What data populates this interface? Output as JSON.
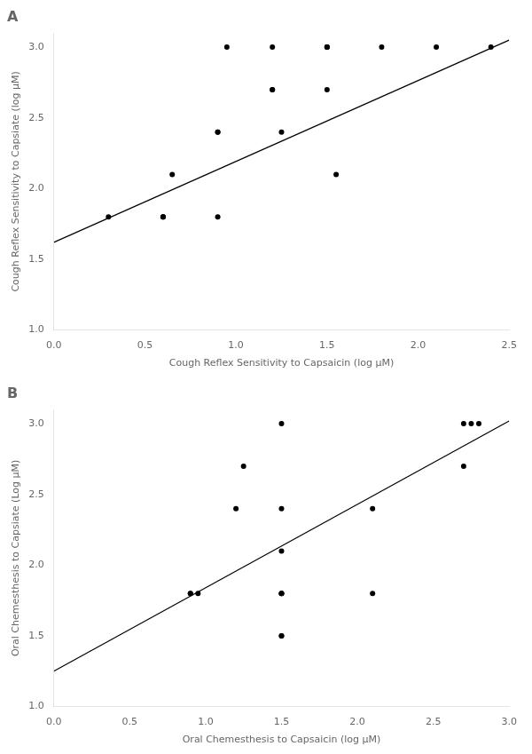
{
  "chart_data": [
    {
      "type": "scatter",
      "title": "A",
      "xlabel": "Cough Reflex Sensitivity to Capsaicin (log μM)",
      "ylabel": "Cough Reflex Sensitivity to Capsiate (log μM)",
      "xlim": [
        0.0,
        2.5
      ],
      "ylim": [
        1.0,
        3.1
      ],
      "xticks": [
        {
          "value": 0.0,
          "label": "0.0"
        },
        {
          "value": 0.5,
          "label": "0.5"
        },
        {
          "value": 1.0,
          "label": "1.0"
        },
        {
          "value": 1.5,
          "label": "1.5"
        },
        {
          "value": 2.0,
          "label": "2.0"
        },
        {
          "value": 2.5,
          "label": "2.5"
        }
      ],
      "yticks": [
        {
          "value": 1.0,
          "label": "1.0"
        },
        {
          "value": 1.5,
          "label": "1.5"
        },
        {
          "value": 2.0,
          "label": "2.0"
        },
        {
          "value": 2.5,
          "label": "2.5"
        },
        {
          "value": 3.0,
          "label": "3.0"
        }
      ],
      "grid": false,
      "series": [
        {
          "type": "scatter",
          "color": "#000000",
          "x": [
            0.3,
            0.6,
            0.6,
            0.6,
            0.65,
            0.9,
            0.9,
            0.9,
            0.95,
            1.2,
            1.2,
            1.2,
            1.25,
            1.5,
            1.5,
            1.5,
            1.5,
            1.55,
            1.8,
            2.1,
            2.4
          ],
          "values": [
            1.8,
            1.8,
            1.8,
            1.8,
            2.1,
            2.4,
            2.4,
            1.8,
            3.0,
            2.7,
            2.7,
            3.0,
            2.4,
            3.0,
            3.0,
            3.0,
            2.7,
            2.1,
            3.0,
            3.0,
            3.0
          ]
        },
        {
          "type": "line",
          "color": "#000000",
          "x": [
            0.0,
            2.5
          ],
          "values": [
            1.62,
            3.05
          ]
        }
      ]
    },
    {
      "type": "scatter",
      "title": "B",
      "xlabel": "Oral Chemesthesis to Capsaicin (log μM)",
      "ylabel": "Oral Chemesthesis to Capsiate (Log μM)",
      "xlim": [
        0.0,
        3.0
      ],
      "ylim": [
        1.0,
        3.1
      ],
      "xticks": [
        {
          "value": 0.0,
          "label": "0.0"
        },
        {
          "value": 0.5,
          "label": "0.5"
        },
        {
          "value": 1.0,
          "label": "1.0"
        },
        {
          "value": 1.5,
          "label": "1.5"
        },
        {
          "value": 2.0,
          "label": "2.0"
        },
        {
          "value": 2.5,
          "label": "2.5"
        },
        {
          "value": 3.0,
          "label": "3.0"
        }
      ],
      "yticks": [
        {
          "value": 1.0,
          "label": "1.0"
        },
        {
          "value": 1.5,
          "label": "1.5"
        },
        {
          "value": 2.0,
          "label": "2.0"
        },
        {
          "value": 2.5,
          "label": "2.5"
        },
        {
          "value": 3.0,
          "label": "3.0"
        }
      ],
      "grid": false,
      "series": [
        {
          "type": "scatter",
          "color": "#000000",
          "x": [
            0.9,
            0.9,
            0.95,
            1.2,
            1.25,
            1.5,
            1.5,
            1.5,
            1.5,
            1.5,
            1.5,
            1.5,
            1.5,
            2.1,
            2.1,
            2.7,
            2.7,
            2.75,
            2.8
          ],
          "values": [
            1.8,
            1.8,
            1.8,
            2.4,
            2.7,
            1.5,
            1.5,
            1.8,
            1.8,
            1.8,
            2.1,
            2.4,
            3.0,
            1.8,
            2.4,
            3.0,
            2.7,
            3.0,
            3.0
          ]
        },
        {
          "type": "line",
          "color": "#000000",
          "x": [
            0.0,
            3.0
          ],
          "values": [
            1.25,
            3.02
          ]
        }
      ]
    }
  ]
}
